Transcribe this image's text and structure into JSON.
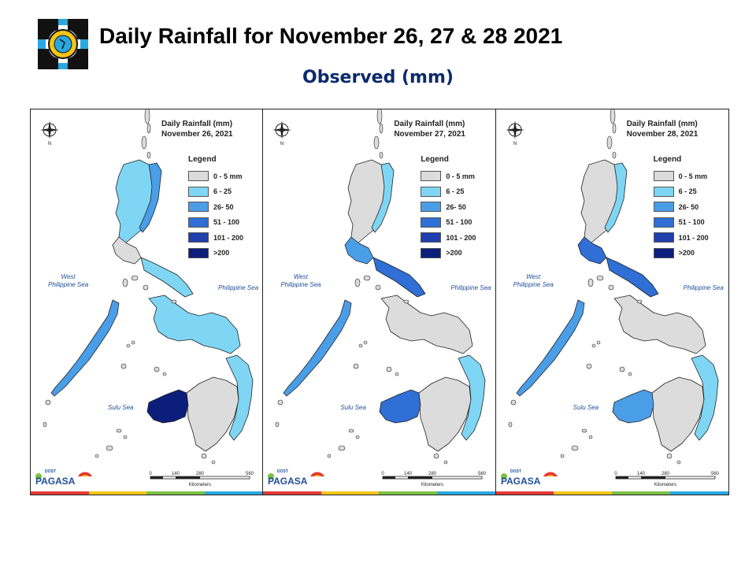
{
  "header": {
    "title": "Daily Rainfall for November 26, 27 & 28  2021",
    "subtitle": "Observed (mm)"
  },
  "legend": {
    "title": "Legend",
    "items": [
      {
        "label": "0 - 5 mm",
        "color": "#dcdcdc"
      },
      {
        "label": "6 - 25",
        "color": "#7fd6f4"
      },
      {
        "label": "26- 50",
        "color": "#4a9ee8"
      },
      {
        "label": "51 - 100",
        "color": "#2f6fd6"
      },
      {
        "label": "101 - 200",
        "color": "#1f3fae"
      },
      {
        "label": ">200",
        "color": "#0b1e7c"
      }
    ]
  },
  "panels": [
    {
      "heading": "Daily Rainfall (mm)",
      "date": "November 26, 2021",
      "west_sea": "West\nPhilippine Sea",
      "east_sea": "Philippine Sea",
      "south_sea": "Sulu Sea",
      "north": "N",
      "regions": {
        "north_luzon": "#7fd6f4",
        "ne_coast": "#4a9ee8",
        "central_luzon": "#dcdcdc",
        "bicol": "#7fd6f4",
        "palawan": "#4a9ee8",
        "visayas": "#7fd6f4",
        "mindanao_west": "#0b1e7c",
        "mindanao_east": "#7fd6f4",
        "mindanao_core": "#dcdcdc"
      }
    },
    {
      "heading": "Daily Rainfall (mm)",
      "date": "November 27, 2021",
      "west_sea": "West\nPhilippine Sea",
      "east_sea": "Philippine Sea",
      "south_sea": "Sulu Sea",
      "north": "N",
      "regions": {
        "north_luzon": "#dcdcdc",
        "ne_coast": "#7fd6f4",
        "central_luzon": "#4a9ee8",
        "bicol": "#2f6fd6",
        "palawan": "#4a9ee8",
        "visayas": "#dcdcdc",
        "mindanao_west": "#2f6fd6",
        "mindanao_east": "#7fd6f4",
        "mindanao_core": "#dcdcdc"
      }
    },
    {
      "heading": "Daily Rainfall (mm)",
      "date": "November 28, 2021",
      "west_sea": "West\nPhilippine Sea",
      "east_sea": "Philippine Sea",
      "south_sea": "Sulu Sea",
      "north": "N",
      "regions": {
        "north_luzon": "#dcdcdc",
        "ne_coast": "#7fd6f4",
        "central_luzon": "#2f6fd6",
        "bicol": "#2f6fd6",
        "palawan": "#4a9ee8",
        "visayas": "#dcdcdc",
        "mindanao_west": "#4a9ee8",
        "mindanao_east": "#7fd6f4",
        "mindanao_core": "#dcdcdc"
      }
    }
  ],
  "scale": {
    "ticks": [
      "0",
      "140",
      "280",
      "560"
    ],
    "unit": "Kilometers"
  },
  "brand": {
    "name": "PAGASA",
    "small": "DOST"
  },
  "stripe_colors": [
    "#e53935",
    "#f5c518",
    "#7cc142",
    "#29a8e0"
  ]
}
